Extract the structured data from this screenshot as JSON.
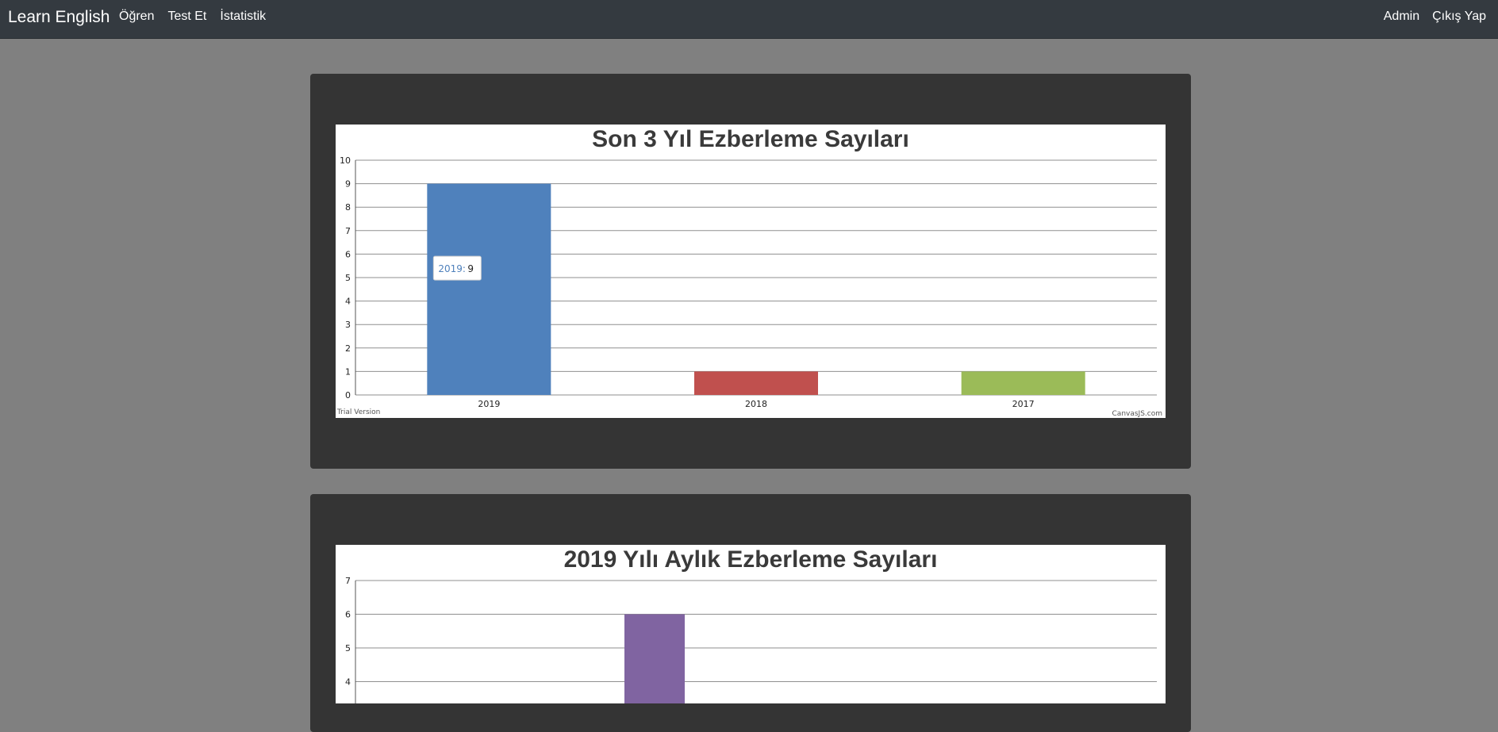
{
  "navbar": {
    "brand": "Learn English",
    "left_links": [
      "Öğren",
      "Test Et",
      "İstatistik"
    ],
    "right_links": [
      "Admin",
      "Çıkış Yap"
    ]
  },
  "colors": {
    "navbar_bg": "#343a40",
    "page_bg": "#808080",
    "card_bg": "#343434",
    "series": [
      "#4f81bc",
      "#c0504e",
      "#9bbb58",
      "#8064a1"
    ]
  },
  "chart_data": [
    {
      "type": "bar",
      "title": "Son 3 Yıl Ezberleme Sayıları",
      "categories": [
        "2019",
        "2018",
        "2017"
      ],
      "values": [
        9,
        1,
        1
      ],
      "ylim": [
        0,
        10
      ],
      "yticks": [
        0,
        1,
        2,
        3,
        4,
        5,
        6,
        7,
        8,
        9,
        10
      ],
      "tooltip": {
        "label": "2019:",
        "value": "9"
      },
      "watermark_left": "Trial Version",
      "watermark_right": "CanvasJS.com"
    },
    {
      "type": "bar",
      "title": "2019 Yılı Aylık Ezberleme Sayıları",
      "values_visible": [
        6
      ],
      "ylim": [
        0,
        7
      ],
      "yticks": [
        4,
        5,
        6,
        7
      ]
    }
  ]
}
